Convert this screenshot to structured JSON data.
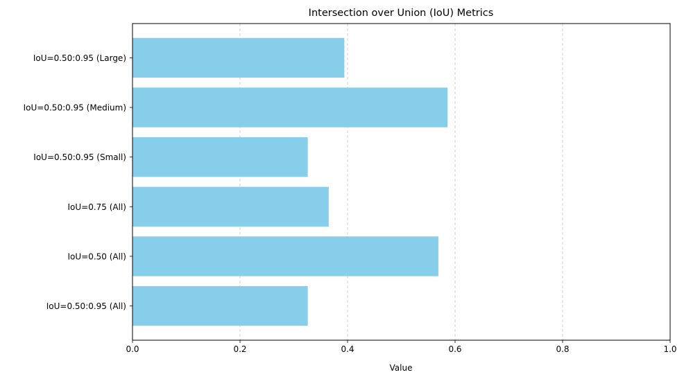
{
  "chart_data": {
    "type": "bar",
    "orientation": "horizontal",
    "title": "Intersection over Union (IoU) Metrics",
    "xlabel": "Value",
    "ylabel": "",
    "xlim": [
      0.0,
      1.0
    ],
    "x_ticks": [
      "0.0",
      "0.2",
      "0.4",
      "0.6",
      "0.8",
      "1.0"
    ],
    "x_tick_values": [
      0.0,
      0.2,
      0.4,
      0.6,
      0.8,
      1.0
    ],
    "grid": "x-axis dashed",
    "bar_color": "#87ceeb",
    "grid_color": "#c8c8c8",
    "categories": [
      "IoU=0.50:0.95 (All)",
      "IoU=0.50 (All)",
      "IoU=0.75 (All)",
      "IoU=0.50:0.95 (Small)",
      "IoU=0.50:0.95 (Medium)",
      "IoU=0.50:0.95 (Large)"
    ],
    "values": [
      0.326,
      0.569,
      0.365,
      0.326,
      0.586,
      0.394
    ]
  }
}
